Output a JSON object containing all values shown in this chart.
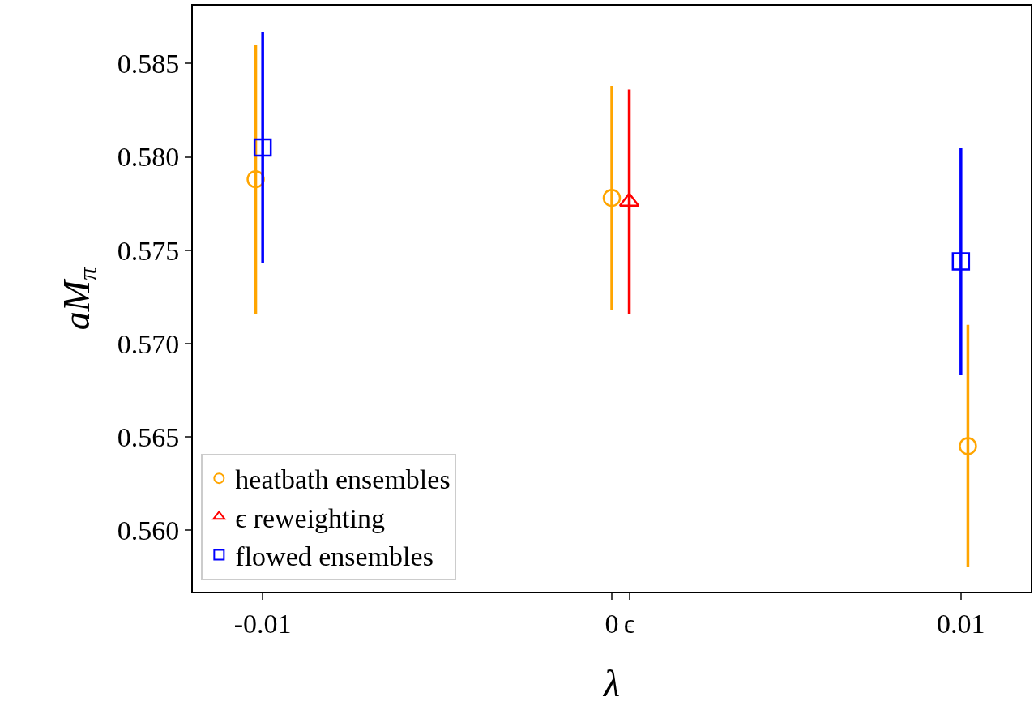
{
  "chart_data": {
    "type": "scatter",
    "xlabel": "λ",
    "ylabel": "aM$_{π}$",
    "xlim": [
      -0.012,
      0.012
    ],
    "xticks": [
      {
        "value": -0.01,
        "label": "-0.01"
      },
      {
        "value": 0,
        "label": "0"
      },
      {
        "value": 0.0005,
        "label": "ϵ"
      },
      {
        "value": 0.01,
        "label": "0.01"
      }
    ],
    "ylim": [
      0.5567,
      0.5881
    ],
    "yticks": [
      {
        "value": 0.56,
        "label": "0.560"
      },
      {
        "value": 0.565,
        "label": "0.565"
      },
      {
        "value": 0.57,
        "label": "0.570"
      },
      {
        "value": 0.575,
        "label": "0.575"
      },
      {
        "value": 0.58,
        "label": "0.580"
      },
      {
        "value": 0.585,
        "label": "0.585"
      }
    ],
    "legend": "bottom left",
    "series": [
      {
        "name": "heatbath ensembles",
        "color": "#ffa500",
        "marker": "circle",
        "x": [
          -0.0102,
          0,
          0.0102
        ],
        "values": [
          0.5788,
          0.5778,
          0.5645
        ],
        "errors": [
          0.0072,
          0.006,
          0.0065
        ]
      },
      {
        "name": "ϵ reweighting",
        "color": "#ff0000",
        "marker": "triangle",
        "x": [
          0.0005
        ],
        "values": [
          0.5776
        ],
        "errors": [
          0.006
        ]
      },
      {
        "name": "flowed ensembles",
        "color": "#0000ff",
        "marker": "square",
        "x": [
          -0.01,
          0.01
        ],
        "values": [
          0.5805,
          0.5744
        ],
        "errors": [
          0.0062,
          0.0061
        ]
      }
    ]
  }
}
